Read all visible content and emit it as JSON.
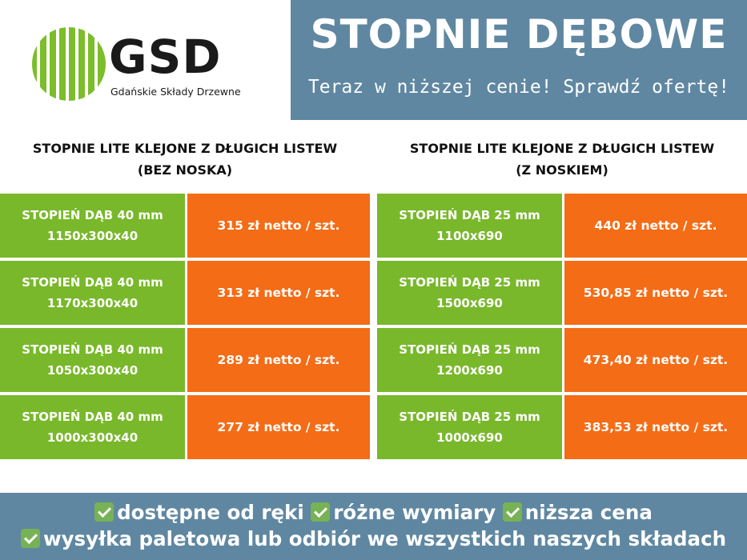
{
  "logo": {
    "name": "GSD",
    "subtitle": "Gdańskie Składy Drzewne",
    "color": "#7bbd2a"
  },
  "banner": {
    "title": "STOPNIE DĘBOWE",
    "subtitle": "Teraz w niższej cenie! Sprawdź ofertę!",
    "color": "#5f87a1"
  },
  "left_table": {
    "heading_line1": "STOPNIE LITE KLEJONE Z DŁUGICH LISTEW",
    "heading_line2": "(BEZ NOSKA)",
    "rows": [
      {
        "name": "STOPIEŃ DĄB 40 mm",
        "size": "1150x300x40",
        "price": "315 zł netto / szt."
      },
      {
        "name": "STOPIEŃ DĄB 40 mm",
        "size": "1170x300x40",
        "price": "313 zł netto / szt."
      },
      {
        "name": "STOPIEŃ DĄB 40 mm",
        "size": "1050x300x40",
        "price": "289 zł netto / szt."
      },
      {
        "name": "STOPIEŃ DĄB 40 mm",
        "size": "1000x300x40",
        "price": "277 zł netto / szt."
      }
    ]
  },
  "right_table": {
    "heading_line1": "STOPNIE LITE KLEJONE Z DŁUGICH LISTEW",
    "heading_line2": "(Z NOSKIEM)",
    "rows": [
      {
        "name": "STOPIEŃ DĄB 25 mm",
        "size": "1100x690",
        "price": "440 zł netto / szt."
      },
      {
        "name": "STOPIEŃ DĄB 25 mm",
        "size": "1500x690",
        "price": "530,85 zł netto / szt."
      },
      {
        "name": "STOPIEŃ DĄB 25 mm",
        "size": "1200x690",
        "price": "473,40 zł netto / szt."
      },
      {
        "name": "STOPIEŃ DĄB 25 mm",
        "size": "1000x690",
        "price": "383,53 zł netto / szt."
      }
    ]
  },
  "colors": {
    "product_cell": "#79b82b",
    "price_cell": "#f46c16",
    "footer": "#5f87a1"
  },
  "footer": {
    "feature1": "dostępne od ręki",
    "feature2": "różne wymiary",
    "feature3": "niższa cena",
    "feature4": "wysyłka paletowa lub odbiór we wszystkich naszych składach",
    "icon": "check-mark-icon"
  }
}
